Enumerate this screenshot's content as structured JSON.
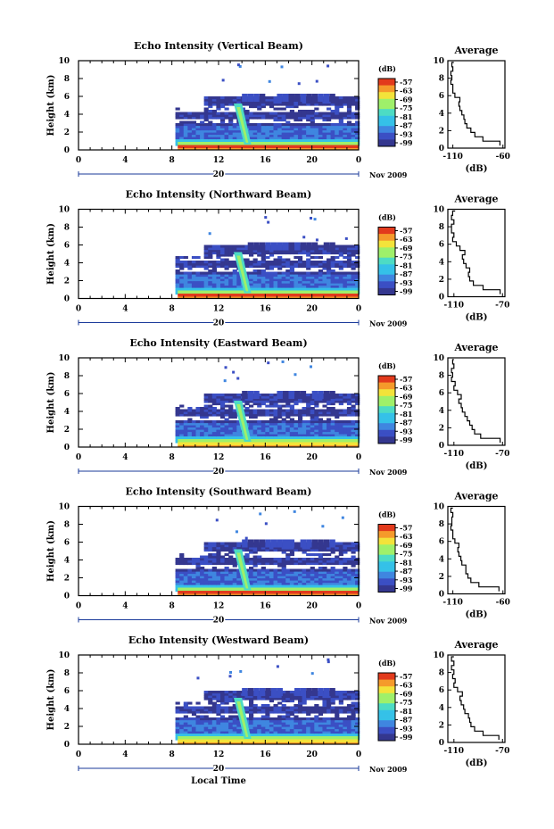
{
  "colors": {
    "scale": [
      "#34378f",
      "#3b4fc4",
      "#3f86e0",
      "#35c1e8",
      "#4ddcc4",
      "#9ff06a",
      "#f3e33a",
      "#f59a2b",
      "#e23a1c"
    ],
    "axis": "#000000",
    "profile_line": "#000000"
  },
  "figure": {
    "xlabel": "Local Time",
    "date_label": "Nov 2009"
  },
  "chart_data": [
    {
      "type": "heatmap",
      "title": "Echo Intensity (Vertical Beam)",
      "ylabel": "Height (km)",
      "xlabel": "Local Time",
      "ylim": [
        0,
        10
      ],
      "x_ticks": [
        "0",
        "4",
        "8",
        "12",
        "16",
        "20",
        "0"
      ],
      "y_ticks": [
        "0",
        "2",
        "4",
        "6",
        "8",
        "10"
      ],
      "day_label": "20",
      "date": "Nov 2009",
      "colorbar": {
        "unit": "(dB)",
        "ticks": [
          "-57",
          "-63",
          "-69",
          "-75",
          "-81",
          "-87",
          "-93",
          "-99"
        ]
      },
      "profile": {
        "title": "Average",
        "xlabel": "(dB)",
        "x_ticks": [
          "-110",
          "-60"
        ],
        "y_ticks": [
          "0",
          "2",
          "4",
          "6",
          "8",
          "10"
        ],
        "xlim": [
          -115,
          -58
        ],
        "ylim": [
          0,
          10
        ],
        "heights": [
          0.3,
          0.8,
          1.3,
          1.8,
          2.3,
          2.8,
          3.3,
          3.8,
          4.3,
          4.8,
          5.3,
          5.8,
          6.3,
          6.8,
          7.3,
          7.8,
          8.3,
          8.8,
          9.3,
          9.8
        ],
        "values": [
          -63,
          -80,
          -88,
          -92,
          -96,
          -98,
          -99,
          -101,
          -103,
          -104,
          -103,
          -108,
          -110,
          -110,
          -112,
          -111,
          -112,
          -110,
          -111,
          -109
        ]
      }
    },
    {
      "type": "heatmap",
      "title": "Echo Intensity (Northward Beam)",
      "ylabel": "Height (km)",
      "xlabel": "Local Time",
      "ylim": [
        0,
        10
      ],
      "x_ticks": [
        "0",
        "4",
        "8",
        "12",
        "16",
        "20",
        "0"
      ],
      "y_ticks": [
        "0",
        "2",
        "4",
        "6",
        "8",
        "10"
      ],
      "day_label": "20",
      "date": "Nov 2009",
      "colorbar": {
        "unit": "(dB)",
        "ticks": [
          "-57",
          "-63",
          "-69",
          "-75",
          "-81",
          "-87",
          "-93",
          "-99"
        ]
      },
      "profile": {
        "title": "Average",
        "xlabel": "(dB)",
        "x_ticks": [
          "-110",
          "-70"
        ],
        "y_ticks": [
          "0",
          "2",
          "4",
          "6",
          "8",
          "10"
        ],
        "xlim": [
          -115,
          -68
        ],
        "ylim": [
          0,
          10
        ],
        "heights": [
          0.3,
          0.8,
          1.3,
          1.8,
          2.3,
          2.8,
          3.3,
          3.8,
          4.3,
          4.8,
          5.3,
          5.8,
          6.3,
          6.8,
          7.3,
          7.8,
          8.3,
          8.8,
          9.3,
          9.8
        ],
        "values": [
          -72,
          -86,
          -94,
          -97,
          -98,
          -97,
          -100,
          -102,
          -103,
          -101,
          -105,
          -108,
          -111,
          -110,
          -112,
          -112,
          -110,
          -112,
          -111,
          -109
        ]
      }
    },
    {
      "type": "heatmap",
      "title": "Echo Intensity (Eastward Beam)",
      "ylabel": "Height (km)",
      "xlabel": "Local Time",
      "ylim": [
        0,
        10
      ],
      "x_ticks": [
        "0",
        "4",
        "8",
        "12",
        "16",
        "20",
        "0"
      ],
      "y_ticks": [
        "0",
        "2",
        "4",
        "6",
        "8",
        "10"
      ],
      "day_label": "20",
      "date": "Nov 2009",
      "colorbar": {
        "unit": "(dB)",
        "ticks": [
          "-57",
          "-63",
          "-69",
          "-75",
          "-81",
          "-87",
          "-93",
          "-99"
        ]
      },
      "profile": {
        "title": "Average",
        "xlabel": "(dB)",
        "x_ticks": [
          "-110",
          "-70"
        ],
        "y_ticks": [
          "0",
          "2",
          "4",
          "6",
          "8",
          "10"
        ],
        "xlim": [
          -115,
          -68
        ],
        "ylim": [
          0,
          10
        ],
        "heights": [
          0.3,
          0.8,
          1.3,
          1.8,
          2.3,
          2.8,
          3.3,
          3.8,
          4.3,
          4.8,
          5.3,
          5.8,
          6.3,
          6.8,
          7.3,
          7.8,
          8.3,
          8.8,
          9.3,
          9.8
        ],
        "values": [
          -72,
          -88,
          -93,
          -95,
          -97,
          -99,
          -101,
          -103,
          -104,
          -106,
          -104,
          -107,
          -110,
          -109,
          -112,
          -111,
          -112,
          -110,
          -111,
          -110
        ]
      }
    },
    {
      "type": "heatmap",
      "title": "Echo Intensity (Southward Beam)",
      "ylabel": "Height (km)",
      "xlabel": "Local Time",
      "ylim": [
        0,
        10
      ],
      "x_ticks": [
        "0",
        "4",
        "8",
        "12",
        "16",
        "20",
        "0"
      ],
      "y_ticks": [
        "0",
        "2",
        "4",
        "6",
        "8",
        "10"
      ],
      "day_label": "20",
      "date": "Nov 2009",
      "colorbar": {
        "unit": "(dB)",
        "ticks": [
          "-57",
          "-63",
          "-69",
          "-75",
          "-81",
          "-87",
          "-93",
          "-99"
        ]
      },
      "profile": {
        "title": "Average",
        "xlabel": "(dB)",
        "x_ticks": [
          "-110",
          "-60"
        ],
        "y_ticks": [
          "0",
          "2",
          "4",
          "6",
          "8",
          "10"
        ],
        "xlim": [
          -115,
          -58
        ],
        "ylim": [
          0,
          10
        ],
        "heights": [
          0.3,
          0.8,
          1.3,
          1.8,
          2.3,
          2.8,
          3.3,
          3.8,
          4.3,
          4.8,
          5.3,
          5.8,
          6.3,
          6.8,
          7.3,
          7.8,
          8.3,
          8.8,
          9.3,
          9.8
        ],
        "values": [
          -64,
          -84,
          -92,
          -95,
          -97,
          -97,
          -101,
          -102,
          -104,
          -105,
          -104,
          -108,
          -110,
          -110,
          -112,
          -111,
          -111,
          -110,
          -112,
          -110
        ]
      }
    },
    {
      "type": "heatmap",
      "title": "Echo Intensity (Westward Beam)",
      "ylabel": "Height (km)",
      "xlabel": "Local Time",
      "ylim": [
        0,
        10
      ],
      "x_ticks": [
        "0",
        "4",
        "8",
        "12",
        "16",
        "20",
        "0"
      ],
      "y_ticks": [
        "0",
        "2",
        "4",
        "6",
        "8",
        "10"
      ],
      "day_label": "20",
      "date": "Nov 2009",
      "colorbar": {
        "unit": "(dB)",
        "ticks": [
          "-57",
          "-63",
          "-69",
          "-75",
          "-81",
          "-87",
          "-93",
          "-99"
        ]
      },
      "profile": {
        "title": "Average",
        "xlabel": "(dB)",
        "x_ticks": [
          "-110",
          "-70"
        ],
        "y_ticks": [
          "0",
          "2",
          "4",
          "6",
          "8",
          "10"
        ],
        "xlim": [
          -115,
          -68
        ],
        "ylim": [
          0,
          10
        ],
        "heights": [
          0.3,
          0.8,
          1.3,
          1.8,
          2.3,
          2.8,
          3.3,
          3.8,
          4.3,
          4.8,
          5.3,
          5.8,
          6.3,
          6.8,
          7.3,
          7.8,
          8.3,
          8.8,
          9.3,
          9.8
        ],
        "values": [
          -73,
          -86,
          -93,
          -96,
          -97,
          -98,
          -101,
          -102,
          -104,
          -105,
          -103,
          -107,
          -110,
          -109,
          -111,
          -110,
          -112,
          -110,
          -112,
          -110
        ]
      }
    }
  ]
}
